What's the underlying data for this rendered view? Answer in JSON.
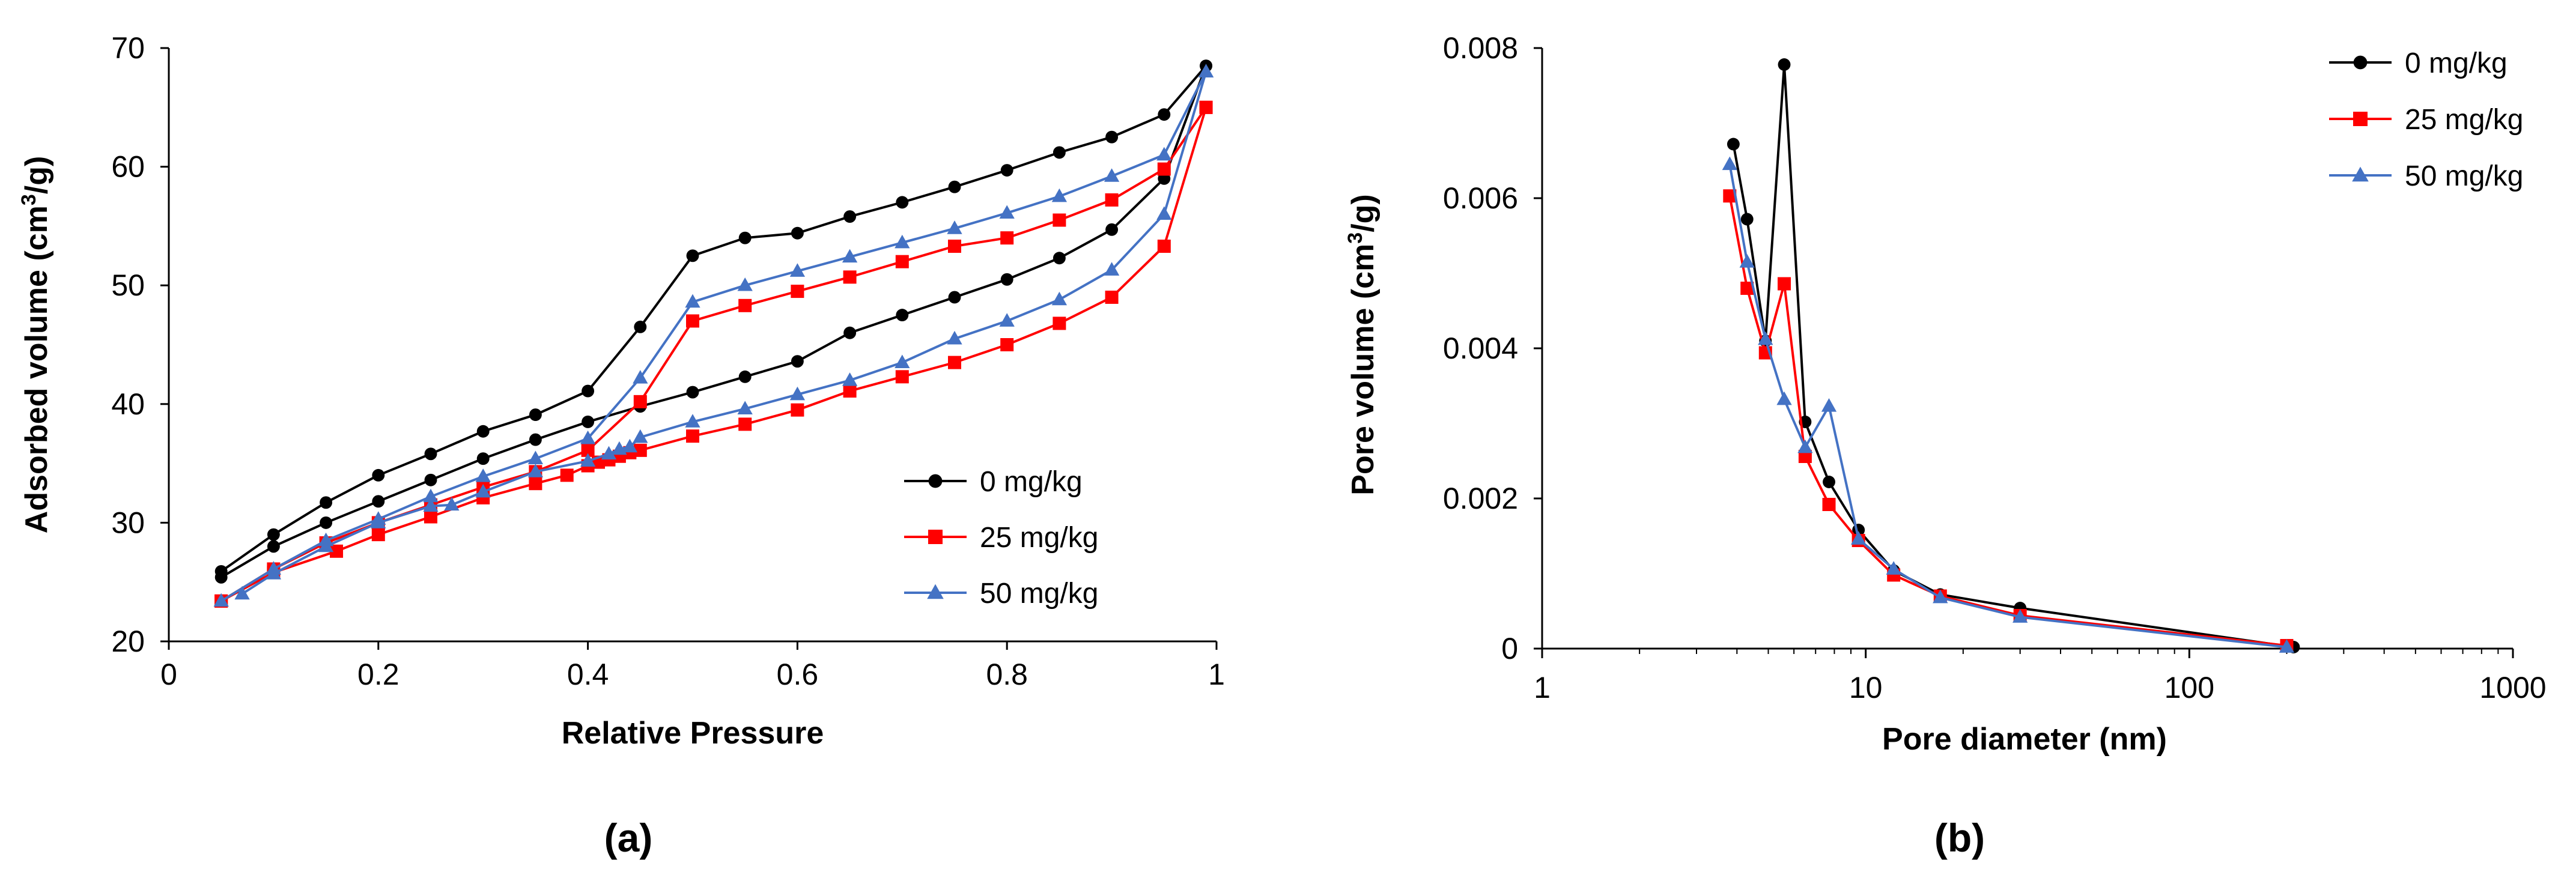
{
  "colors": {
    "black": "#000000",
    "red": "#ff0000",
    "blue": "#4472c4"
  },
  "chart_data": [
    {
      "type": "line",
      "panel_label": "(a)",
      "title": "",
      "xlabel": "Relative Pressure",
      "ylabel_main": "Adsorbed volume (cm",
      "ylabel_sup": "3",
      "ylabel_tail": "/g)",
      "xlim": [
        0,
        1
      ],
      "ylim": [
        20,
        70
      ],
      "xticks": [
        0,
        0.2,
        0.4,
        0.6,
        0.8,
        1
      ],
      "xtick_labels": [
        "0",
        "0.2",
        "0.4",
        "0.6",
        "0.8",
        "1"
      ],
      "yticks": [
        20,
        30,
        40,
        50,
        60,
        70
      ],
      "ytick_labels": [
        "20",
        "30",
        "40",
        "50",
        "60",
        "70"
      ],
      "legend_position": "bottom-right",
      "series": [
        {
          "name": "0 mg/kg",
          "color": "#000000",
          "marker": "circle",
          "adsorption": {
            "x": [
              0.05,
              0.1,
              0.15,
              0.2,
              0.25,
              0.3,
              0.35,
              0.4,
              0.45,
              0.5,
              0.55,
              0.6,
              0.65,
              0.7,
              0.75,
              0.8,
              0.85,
              0.9,
              0.95,
              0.99
            ],
            "y": [
              25.4,
              28,
              30,
              31.8,
              33.6,
              35.4,
              37,
              38.5,
              39.8,
              41,
              42.3,
              43.6,
              46,
              47.5,
              49,
              50.5,
              52.3,
              54.7,
              59,
              68.5
            ]
          },
          "desorption": {
            "x": [
              0.99,
              0.95,
              0.9,
              0.85,
              0.8,
              0.75,
              0.7,
              0.65,
              0.6,
              0.55,
              0.5,
              0.45,
              0.4,
              0.35,
              0.3,
              0.25,
              0.2,
              0.15,
              0.1,
              0.05
            ],
            "y": [
              68.5,
              64.4,
              62.5,
              61.2,
              59.7,
              58.3,
              57,
              55.8,
              54.4,
              54,
              52.5,
              46.5,
              41.1,
              39.1,
              37.7,
              35.8,
              34,
              31.7,
              29,
              25.9
            ]
          }
        },
        {
          "name": "25 mg/kg",
          "color": "#ff0000",
          "marker": "square",
          "adsorption": {
            "x": [
              0.05,
              0.1,
              0.16,
              0.2,
              0.25,
              0.3,
              0.35,
              0.38,
              0.4,
              0.41,
              0.42,
              0.43,
              0.44,
              0.45,
              0.5,
              0.55,
              0.6,
              0.65,
              0.7,
              0.75,
              0.8,
              0.85,
              0.9,
              0.95,
              0.99
            ],
            "y": [
              23.4,
              25.8,
              27.6,
              29,
              30.5,
              32.1,
              33.3,
              34,
              34.8,
              35.1,
              35.3,
              35.6,
              35.9,
              36.1,
              37.3,
              38.3,
              39.5,
              41.1,
              42.3,
              43.5,
              45,
              46.8,
              49,
              53.3,
              65
            ]
          },
          "desorption": {
            "x": [
              0.99,
              0.95,
              0.9,
              0.85,
              0.8,
              0.75,
              0.7,
              0.65,
              0.6,
              0.55,
              0.5,
              0.45,
              0.4,
              0.35,
              0.3,
              0.25,
              0.2,
              0.15,
              0.1,
              0.05
            ],
            "y": [
              65,
              59.8,
              57.2,
              55.5,
              54,
              53.3,
              52,
              50.7,
              49.5,
              48.3,
              47,
              40.2,
              36.1,
              34.3,
              33,
              31.5,
              30,
              28.3,
              26.1,
              23.4
            ]
          }
        },
        {
          "name": "50 mg/kg",
          "color": "#4472c4",
          "marker": "triangle",
          "adsorption": {
            "x": [
              0.07,
              0.1,
              0.15,
              0.2,
              0.25,
              0.27,
              0.3,
              0.35,
              0.4,
              0.42,
              0.43,
              0.44,
              0.45,
              0.5,
              0.55,
              0.6,
              0.65,
              0.7,
              0.75,
              0.8,
              0.85,
              0.9,
              0.95,
              0.99
            ],
            "y": [
              24,
              25.7,
              28,
              30,
              31.4,
              31.5,
              32.6,
              34.3,
              35.2,
              35.8,
              36.2,
              36.4,
              37.2,
              38.5,
              39.6,
              40.8,
              42,
              43.5,
              45.5,
              47,
              48.8,
              51.3,
              56,
              68
            ]
          },
          "desorption": {
            "x": [
              0.99,
              0.95,
              0.9,
              0.85,
              0.8,
              0.75,
              0.7,
              0.65,
              0.6,
              0.55,
              0.5,
              0.45,
              0.4,
              0.35,
              0.3,
              0.25,
              0.2,
              0.15,
              0.1,
              0.05
            ],
            "y": [
              68,
              61,
              59.2,
              57.5,
              56.1,
              54.8,
              53.6,
              52.4,
              51.2,
              50,
              48.6,
              42.2,
              37.1,
              35.4,
              33.9,
              32.2,
              30.3,
              28.5,
              26.1,
              23.4
            ]
          }
        }
      ]
    },
    {
      "type": "line",
      "panel_label": "(b)",
      "title": "",
      "xlabel": "Pore diameter (nm)",
      "ylabel_main": "Pore volume (cm",
      "ylabel_sup": "3",
      "ylabel_tail": "/g)",
      "xscale": "log",
      "xlim": [
        1,
        1000
      ],
      "ylim": [
        0,
        0.008
      ],
      "xticks": [
        1,
        10,
        100,
        1000
      ],
      "xtick_labels": [
        "1",
        "10",
        "100",
        "1000"
      ],
      "yticks": [
        0,
        0.002,
        0.004,
        0.006,
        0.008
      ],
      "ytick_labels": [
        "0",
        "0.002",
        "0.004",
        "0.006",
        "0.008"
      ],
      "legend_position": "top-right",
      "series": [
        {
          "name": "0 mg/kg",
          "color": "#000000",
          "marker": "circle",
          "x": [
            3.9,
            4.3,
            4.9,
            5.6,
            6.5,
            7.7,
            9.5,
            12.2,
            17,
            30,
            210
          ],
          "y": [
            0.00672,
            0.00572,
            0.0041,
            0.00778,
            0.00302,
            0.00222,
            0.00158,
            0.00104,
            0.00072,
            0.00054,
            2e-05
          ]
        },
        {
          "name": "25 mg/kg",
          "color": "#ff0000",
          "marker": "square",
          "x": [
            3.8,
            4.3,
            4.9,
            5.6,
            6.5,
            7.7,
            9.5,
            12.2,
            17,
            30,
            200
          ],
          "y": [
            0.00603,
            0.0048,
            0.00394,
            0.00486,
            0.00256,
            0.00192,
            0.00144,
            0.00098,
            0.0007,
            0.00044,
            4e-05
          ]
        },
        {
          "name": "50 mg/kg",
          "color": "#4472c4",
          "marker": "triangle",
          "x": [
            3.8,
            4.3,
            4.9,
            5.6,
            6.5,
            7.7,
            9.5,
            12.2,
            17,
            30,
            200
          ],
          "y": [
            0.00645,
            0.00515,
            0.00412,
            0.00332,
            0.00268,
            0.00323,
            0.00146,
            0.00106,
            0.00068,
            0.00042,
            2e-05
          ]
        }
      ]
    }
  ]
}
